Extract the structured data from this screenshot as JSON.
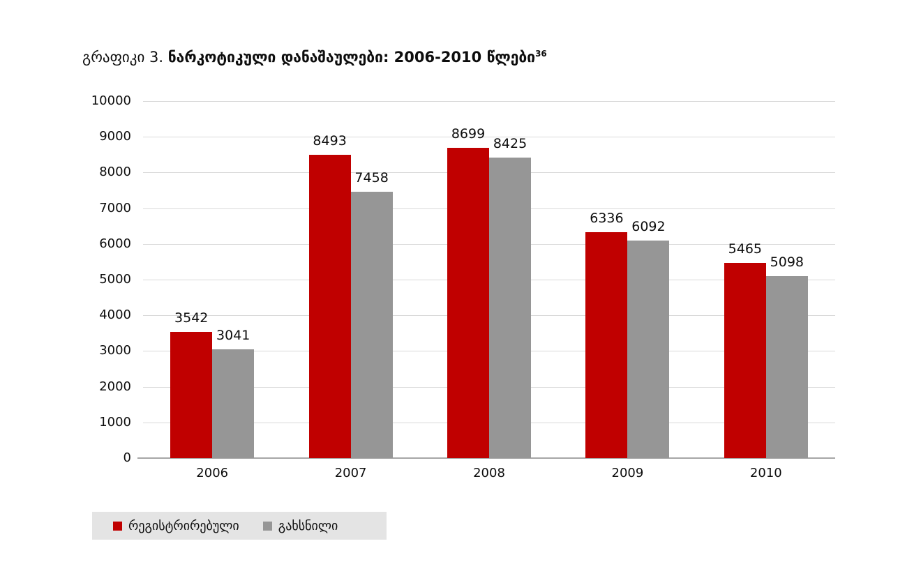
{
  "title": {
    "prefix": "გრაფიკი 3. ",
    "main": "ნარკოტიკული დანაშაულები: 2006-2010 წლები",
    "superscript": "36"
  },
  "chart_data": {
    "type": "bar",
    "title": "ნარკოტიკული დანაშაულები: 2006-2010 წლები",
    "categories": [
      "2006",
      "2007",
      "2008",
      "2009",
      "2010"
    ],
    "series": [
      {
        "name": "რეგისტრირებული",
        "color": "#c00000",
        "values": [
          3542,
          8493,
          8699,
          6336,
          5465
        ]
      },
      {
        "name": "გახსნილი",
        "color": "#969696",
        "values": [
          3041,
          7458,
          8425,
          6092,
          5098
        ]
      }
    ],
    "ylim": [
      0,
      10000
    ],
    "yticks": [
      0,
      1000,
      2000,
      3000,
      4000,
      5000,
      6000,
      7000,
      8000,
      9000,
      10000
    ],
    "grid": true,
    "legend_position": "bottom-left",
    "colors": {
      "grid": "#d9d9d9",
      "axis": "#a6a6a6",
      "legend_background": "#e4e4e4",
      "text": "#0d0d0d"
    }
  }
}
